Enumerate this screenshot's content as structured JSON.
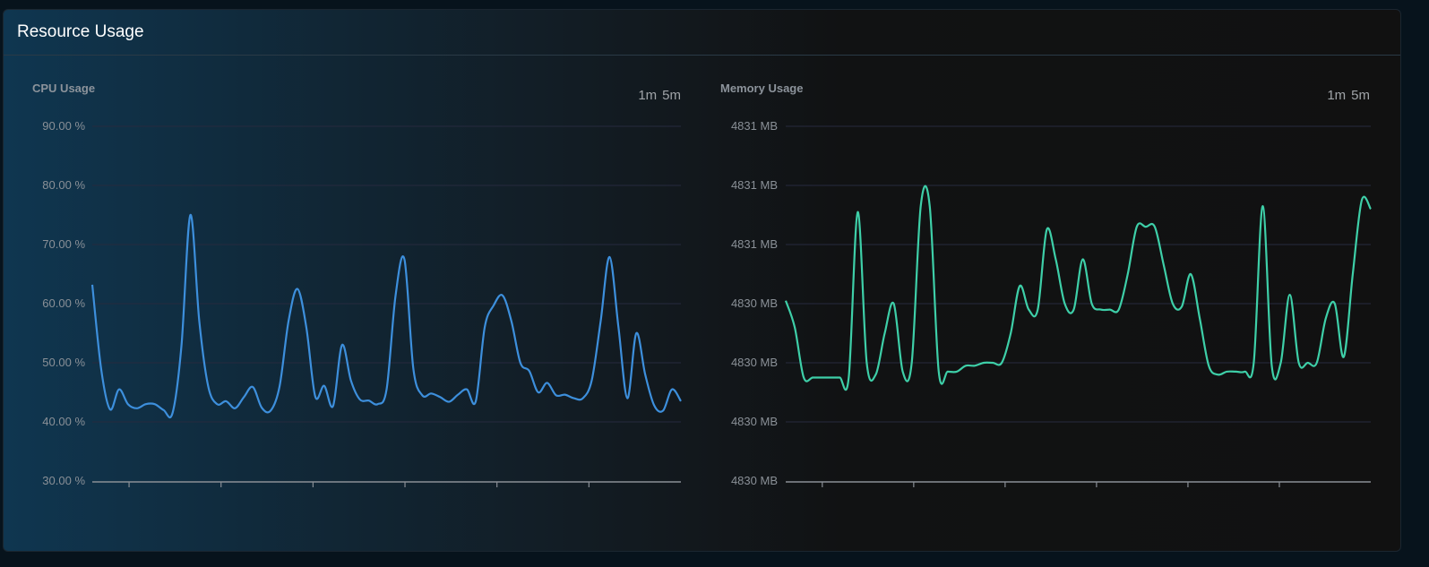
{
  "card": {
    "title": "Resource Usage"
  },
  "chart_data": [
    {
      "type": "line",
      "title": "CPU Usage",
      "range_options": [
        "1m",
        "5m"
      ],
      "color": "#3d8fdc",
      "ylim": [
        30,
        90
      ],
      "y_ticks": [
        30,
        40,
        50,
        60,
        70,
        80,
        90
      ],
      "y_tick_labels": [
        "30.00 %",
        "40.00 %",
        "50.00 %",
        "60.00 %",
        "70.00 %",
        "80.00 %",
        "90.00 %"
      ],
      "x_tick_count": 6,
      "grid": true,
      "values": [
        63.2,
        48.9,
        42.1,
        45.5,
        43.0,
        42.3,
        43.0,
        43.0,
        42.0,
        41.5,
        52.9,
        75.0,
        57.0,
        46.0,
        43.0,
        43.5,
        42.3,
        44.2,
        45.9,
        42.4,
        41.9,
        46.0,
        57.0,
        62.5,
        56.0,
        44.3,
        46.1,
        42.7,
        53.0,
        47.0,
        43.8,
        43.6,
        43.0,
        45.5,
        61.3,
        67.5,
        49.0,
        44.5,
        44.8,
        44.2,
        43.4,
        44.6,
        45.5,
        43.5,
        56.0,
        59.7,
        61.4,
        57.0,
        50.0,
        48.6,
        45.0,
        46.6,
        44.5,
        44.6,
        44.0,
        44.0,
        47.0,
        57.0,
        67.9,
        56.0,
        44.0,
        55.0,
        48.0,
        42.8,
        41.9,
        45.5,
        43.5
      ]
    },
    {
      "type": "line",
      "title": "Memory Usage",
      "range_options": [
        "1m",
        "5m"
      ],
      "color": "#3ecfa8",
      "ylim": [
        4829.7,
        4830.9
      ],
      "y_ticks": [
        4829.7,
        4829.9,
        4830.1,
        4830.3,
        4830.5,
        4830.7,
        4830.9
      ],
      "y_tick_labels": [
        "4830 MB",
        "4830 MB",
        "4830 MB",
        "4830 MB",
        "4831 MB",
        "4831 MB",
        "4831 MB"
      ],
      "x_tick_count": 6,
      "grid": true,
      "values": [
        4830.31,
        4830.22,
        4830.05,
        4830.05,
        4830.05,
        4830.05,
        4830.05,
        4830.05,
        4830.61,
        4830.1,
        4830.06,
        4830.2,
        4830.3,
        4830.07,
        4830.1,
        4830.63,
        4830.63,
        4830.07,
        4830.07,
        4830.07,
        4830.09,
        4830.09,
        4830.1,
        4830.1,
        4830.1,
        4830.2,
        4830.36,
        4830.28,
        4830.28,
        4830.55,
        4830.45,
        4830.3,
        4830.28,
        4830.45,
        4830.3,
        4830.28,
        4830.28,
        4830.28,
        4830.4,
        4830.56,
        4830.56,
        4830.56,
        4830.43,
        4830.3,
        4830.29,
        4830.4,
        4830.25,
        4830.09,
        4830.06,
        4830.07,
        4830.07,
        4830.07,
        4830.1,
        4830.63,
        4830.09,
        4830.1,
        4830.33,
        4830.1,
        4830.1,
        4830.1,
        4830.25,
        4830.3,
        4830.12,
        4830.4,
        4830.65,
        4830.62
      ]
    }
  ]
}
